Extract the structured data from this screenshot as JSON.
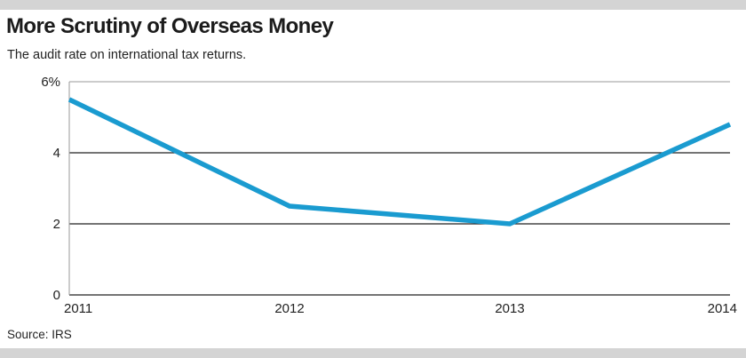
{
  "header": {
    "title": "More Scrutiny of Overseas Money",
    "subtitle": "The audit rate on international tax returns."
  },
  "footer": {
    "source": "Source: IRS"
  },
  "colors": {
    "line": "#1a9bd0",
    "grid": "#222222",
    "band": "#d4d4d4"
  },
  "chart_data": {
    "type": "line",
    "title": "More Scrutiny of Overseas Money",
    "subtitle": "The audit rate on international tax returns.",
    "xlabel": "",
    "ylabel": "",
    "categories": [
      "2011",
      "2012",
      "2013",
      "2014"
    ],
    "series": [
      {
        "values": [
          5.5,
          2.5,
          2.0,
          4.8
        ]
      }
    ],
    "ylim": [
      0,
      6
    ],
    "yticks": [
      0,
      2,
      4,
      6
    ],
    "ytick_labels": [
      "0",
      "2",
      "4",
      "6%"
    ],
    "grid": true,
    "legend": "none"
  }
}
